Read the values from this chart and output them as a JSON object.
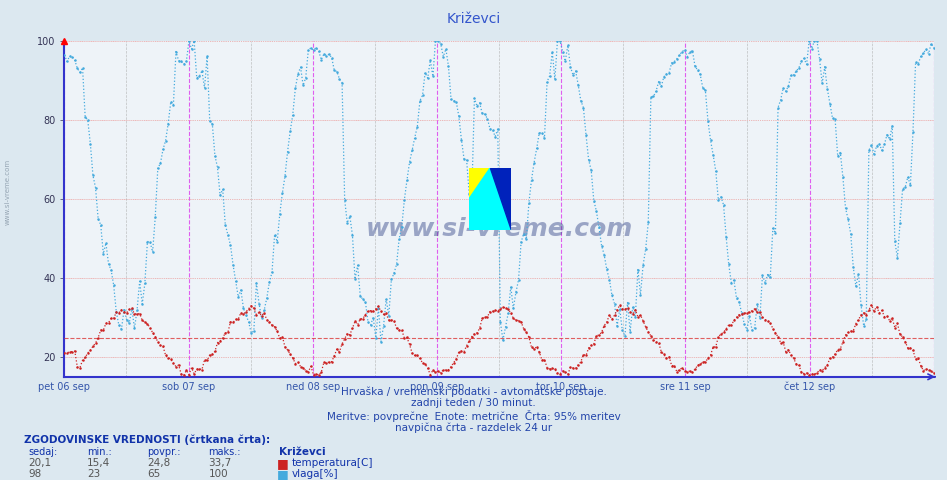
{
  "title": "Križevci",
  "bg_color": "#dce8f0",
  "plot_bg_color": "#ffffff",
  "plot_bg_color2": "#eef4f8",
  "grid_color_major": "#f0b0b0",
  "grid_color_minor": "#e0e8f0",
  "y_min": 15,
  "y_max": 100,
  "y_ticks": [
    20,
    40,
    60,
    80,
    100
  ],
  "x_labels": [
    "pet 06 sep",
    "sob 07 sep",
    "ned 08 sep",
    "pon 09 sep",
    "tor 10 sep",
    "sre 11 sep",
    "čet 12 sep"
  ],
  "n_days": 7,
  "n_points": 336,
  "temp_avg": 24.8,
  "temp_min": 15.4,
  "temp_max": 33.7,
  "temp_current": 20.1,
  "humidity_avg": 65,
  "humidity_min": 23,
  "humidity_max": 100,
  "humidity_current": 98,
  "subtitle1": "Hrvaška / vremenski podatki - avtomatske postaje.",
  "subtitle2": "zadnji teden / 30 minut.",
  "subtitle3": "Meritve: povprečne  Enote: metrične  Črta: 95% meritev",
  "subtitle4": "navpična črta - razdelek 24 ur",
  "legend_title": "ZGODOVINSKE VREDNOSTI (črtkana črta):",
  "col_headers": [
    "sedaj:",
    "min.:",
    "povpr.:",
    "maks.:"
  ],
  "temp_row": [
    "20,1",
    "15,4",
    "24,8",
    "33,7",
    "temperatura[C]"
  ],
  "humidity_row": [
    "98",
    "23",
    "65",
    "100",
    "vlaga[%]"
  ],
  "station_name": "Križevci",
  "temp_color": "#cc2222",
  "humidity_color": "#44aadd",
  "hline_color": "#dd4444",
  "vline_magenta": "#dd44dd",
  "vline_gray": "#aaaaaa",
  "axis_color": "#3333cc",
  "title_color": "#3355cc",
  "text_color": "#3355cc",
  "watermark_color": "#334488"
}
